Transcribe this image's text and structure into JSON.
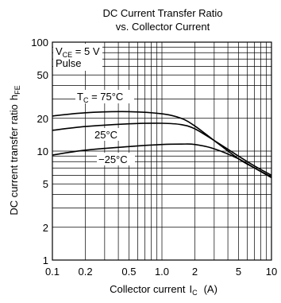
{
  "chart_data": {
    "type": "line",
    "title_line1": "DC Current Transfer Ratio",
    "title_line2": "vs. Collector Current",
    "xlabel": "Collector current",
    "xlabel_symbol": "I",
    "xlabel_sub": "C",
    "xlabel_unit": "(A)",
    "ylabel": "DC current transfer ratio",
    "ylabel_symbol": "h",
    "ylabel_sub": "FE",
    "x_scale": "log",
    "y_scale": "log",
    "xlim": [
      0.1,
      10
    ],
    "ylim": [
      1,
      100
    ],
    "x_ticks": [
      {
        "value": 0.1,
        "label": "0.1"
      },
      {
        "value": 0.2,
        "label": "0.2"
      },
      {
        "value": 0.5,
        "label": "0.5"
      },
      {
        "value": 1,
        "label": "1.0"
      },
      {
        "value": 2,
        "label": "2"
      },
      {
        "value": 5,
        "label": "5"
      },
      {
        "value": 10,
        "label": "10"
      }
    ],
    "y_ticks": [
      {
        "value": 1,
        "label": "1"
      },
      {
        "value": 2,
        "label": "2"
      },
      {
        "value": 5,
        "label": "5"
      },
      {
        "value": 10,
        "label": "10"
      },
      {
        "value": 20,
        "label": "20"
      },
      {
        "value": 50,
        "label": "50"
      },
      {
        "value": 100,
        "label": "100"
      }
    ],
    "grid": true,
    "conditions": {
      "vce_symbol": "V",
      "vce_sub": "CE",
      "vce_value": " = 5 V",
      "mode": "Pulse"
    },
    "series": [
      {
        "name": "T_C = 75°C",
        "label_prefix": "T",
        "label_sub": "C",
        "label_value": " = 75°C",
        "x": [
          0.1,
          0.2,
          0.5,
          1.0,
          1.5,
          2,
          3,
          5,
          7,
          10
        ],
        "y": [
          21,
          22.5,
          23,
          22,
          20,
          17,
          12.5,
          8.5,
          7,
          5.8
        ]
      },
      {
        "name": "25°C",
        "label": "25°C",
        "x": [
          0.1,
          0.2,
          0.5,
          1.0,
          1.5,
          2,
          3,
          5,
          7,
          10
        ],
        "y": [
          15.5,
          16.8,
          17.8,
          18,
          17.5,
          16,
          12.5,
          9,
          7.3,
          6
        ]
      },
      {
        "name": "-25°C",
        "label": "−25°C",
        "x": [
          0.1,
          0.2,
          0.5,
          1.0,
          1.5,
          2,
          3,
          5,
          7,
          10
        ],
        "y": [
          9.2,
          10.2,
          11,
          11.5,
          11.6,
          11.5,
          10.5,
          8.5,
          7,
          5.7
        ]
      }
    ]
  }
}
